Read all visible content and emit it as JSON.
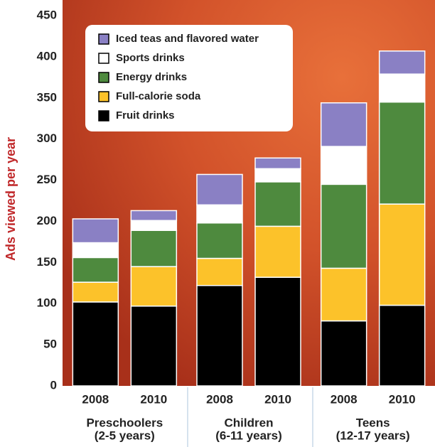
{
  "chart_data": {
    "type": "stacked-bar",
    "y_label": "Ads viewed per year",
    "categories": [
      "2008",
      "2010",
      "2008",
      "2010",
      "2008",
      "2010"
    ],
    "groups": [
      [
        "Preschoolers",
        "(2-5 years)"
      ],
      [
        "Children",
        "(6-11 years)"
      ],
      [
        "Teens",
        "(12-17 years)"
      ]
    ],
    "series": [
      {
        "name": "Fruit drinks",
        "color": "#000000",
        "values": [
          102,
          97,
          122,
          132,
          79,
          98
        ]
      },
      {
        "name": "Full-calorie soda",
        "color": "#fcc22a",
        "values": [
          24,
          48,
          33,
          62,
          64,
          123
        ]
      },
      {
        "name": "Energy drinks",
        "color": "#4e8a3e",
        "values": [
          30,
          44,
          43,
          54,
          102,
          124
        ]
      },
      {
        "name": "Sports drinks",
        "color": "#ffffff",
        "values": [
          18,
          12,
          22,
          16,
          46,
          34
        ]
      },
      {
        "name": "Iced teas and flavored water",
        "color": "#8a80c4",
        "values": [
          29,
          12,
          37,
          13,
          53,
          28
        ]
      }
    ],
    "ylim": [
      0,
      450
    ],
    "yticks": [
      0,
      50,
      100,
      150,
      200,
      250,
      300,
      350,
      400,
      450
    ],
    "legend": "upper left"
  }
}
